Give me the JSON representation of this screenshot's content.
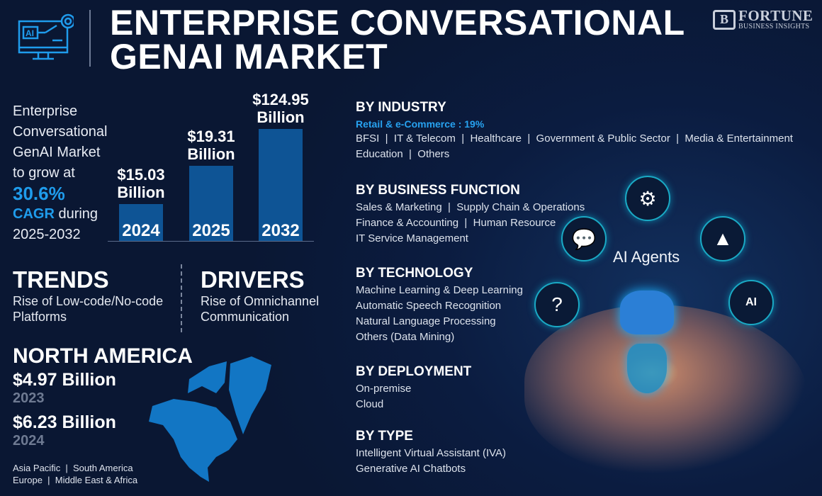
{
  "header": {
    "title_line1": "ENTERPRISE CONVERSATIONAL",
    "title_line2": "GENAI MARKET",
    "logo_name": "FORTUNE",
    "logo_sub": "BUSINESS INSIGHTS",
    "logo_mark": "B"
  },
  "intro": {
    "line1": "Enterprise",
    "line2": "Conversational",
    "line3": "GenAI Market",
    "line4": "to grow at",
    "cagr_value": "30.6%",
    "cagr_label": "CAGR",
    "line5_rest": " during",
    "period": "2025-2032"
  },
  "chart_data": {
    "type": "bar",
    "categories": [
      "2024",
      "2025",
      "2032"
    ],
    "values": [
      15.03,
      19.31,
      124.95
    ],
    "unit": "USD Billion",
    "data_labels": [
      {
        "value": "$15.03",
        "unit": "Billion"
      },
      {
        "value": "$19.31",
        "unit": "Billion"
      },
      {
        "value": "$124.95",
        "unit": "Billion"
      }
    ],
    "bar_color": "#0e5495"
  },
  "trends": {
    "title": "TRENDS",
    "line1": "Rise of Low-code/No-code",
    "line2": "Platforms"
  },
  "drivers": {
    "title": "DRIVERS",
    "line1": "Rise of Omnichannel",
    "line2": "Communication"
  },
  "region": {
    "title": "NORTH AMERICA",
    "value1": "$4.97 Billion",
    "year1": "2023",
    "value2": "$6.23 Billion",
    "year2": "2024",
    "others_line1": "Asia Pacific  |  South America",
    "others_line2": "Europe  |  Middle East & Africa"
  },
  "segments": {
    "industry": {
      "title": "BY INDUSTRY",
      "highlight": "Retail & e-Commerce : 19%",
      "lines": [
        "BFSI  |  IT & Telecom  |  Healthcare  |  Government & Public Sector  |  Media & Entertainment",
        "Education  |  Others"
      ]
    },
    "function": {
      "title": "BY BUSINESS FUNCTION",
      "lines": [
        "Sales & Marketing  |  Supply Chain & Operations",
        "Finance & Accounting  |  Human Resource",
        "IT Service Management"
      ]
    },
    "technology": {
      "title": "BY TECHNOLOGY",
      "lines": [
        "Machine Learning & Deep Learning",
        "Automatic Speech Recognition",
        "Natural Language Processing",
        "Others (Data Mining)"
      ]
    },
    "deployment": {
      "title": "BY DEPLOYMENT",
      "lines": [
        "On-premise",
        "Cloud"
      ]
    },
    "type": {
      "title": "BY TYPE",
      "lines": [
        "Intelligent Virtual Assistant (IVA)",
        "Generative AI Chatbots"
      ]
    }
  },
  "illustration": {
    "caption": "AI Agents",
    "brain_label": "AI"
  },
  "colors": {
    "background": "#0b1c40",
    "accent": "#1f9cec",
    "bar": "#0e5495"
  }
}
